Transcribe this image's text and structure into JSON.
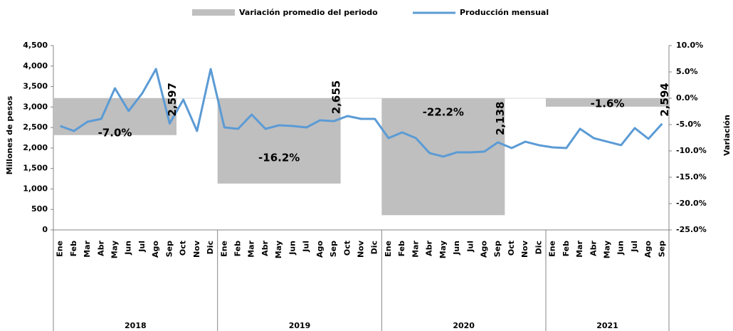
{
  "chart_data": {
    "type": "combo",
    "yaxis_title": "Millones de pesos",
    "y2axis_title": "Variación",
    "groups": [
      {
        "name": "2018",
        "months": [
          "Ene",
          "Feb",
          "Mar",
          "Abr",
          "May",
          "Jun",
          "Jul",
          "Ago",
          "Sep",
          "Oct",
          "Nov",
          "Dic"
        ]
      },
      {
        "name": "2019",
        "months": [
          "Ene",
          "Feb",
          "Mar",
          "Abr",
          "May",
          "Jun",
          "Jul",
          "Ago",
          "Sep",
          "Oct",
          "Nov",
          "Dic"
        ]
      },
      {
        "name": "2020",
        "months": [
          "Ene",
          "Feb",
          "Mar",
          "Abr",
          "May",
          "Jun",
          "Jul",
          "Ago",
          "Sep",
          "Oct",
          "Nov",
          "Dic"
        ]
      },
      {
        "name": "2021",
        "months": [
          "Ene",
          "Feb",
          "Mar",
          "Abr",
          "May",
          "Jun",
          "Jul",
          "Ago",
          "Sep"
        ]
      }
    ],
    "series": [
      {
        "name": "Variación promedio del periodo",
        "type": "bar",
        "axis": "y2",
        "color": "#bfbfbf",
        "values": [
          -7.0,
          -16.2,
          -22.2,
          -1.6
        ],
        "value_labels": [
          "-7.0%",
          "-16.2%",
          "-22.2%",
          "-1.6%"
        ],
        "label_color": "#ff0000"
      },
      {
        "name": "Producción mensual",
        "type": "line",
        "axis": "y",
        "color": "#5b9bd5",
        "values": [
          2537,
          2415,
          2641,
          2710,
          3458,
          2902,
          3336,
          3927,
          2597,
          3180,
          2415,
          3927,
          2502,
          2467,
          2815,
          2467,
          2554,
          2537,
          2502,
          2676,
          2655,
          2780,
          2710,
          2710,
          2241,
          2380,
          2241,
          1876,
          1790,
          1894,
          1894,
          1911,
          2138,
          1998,
          2154,
          2068,
          2015,
          1998,
          2467,
          2241,
          2154,
          2068,
          2485,
          2224,
          2594
        ],
        "value_labels": [
          null,
          null,
          null,
          null,
          null,
          null,
          null,
          null,
          "2,597",
          null,
          null,
          null,
          null,
          null,
          null,
          null,
          null,
          null,
          null,
          null,
          "2,655",
          null,
          null,
          null,
          null,
          null,
          null,
          null,
          null,
          null,
          null,
          null,
          "2,138",
          null,
          null,
          null,
          null,
          null,
          null,
          null,
          null,
          null,
          null,
          null,
          "2,594"
        ]
      }
    ],
    "ylim": [
      0,
      4500
    ],
    "yticks": [
      0,
      500,
      {
        "value": 1000,
        "label": "1,000"
      },
      {
        "value": 1500,
        "label": "1,500"
      },
      {
        "value": 2000,
        "label": "2,000"
      },
      {
        "value": 2500,
        "label": "2,500"
      },
      {
        "value": 3000,
        "label": "3,000"
      },
      {
        "value": 3500,
        "label": "3,500"
      },
      {
        "value": 4000,
        "label": "4,000"
      },
      {
        "value": 4500,
        "label": "4,500"
      }
    ],
    "y2lim": [
      -25,
      10
    ],
    "y2ticks": [
      {
        "value": -25,
        "label": "-25.0%"
      },
      {
        "value": -20,
        "label": "-20.0%"
      },
      {
        "value": -15,
        "label": "-15.0%"
      },
      {
        "value": -10,
        "label": "-10.0%"
      },
      {
        "value": -5,
        "label": "-5.0%"
      },
      {
        "value": 0,
        "label": "0.0%"
      },
      {
        "value": 5,
        "label": "5.0%"
      },
      {
        "value": 10,
        "label": "10.0%"
      }
    ],
    "y2_negative_color": "#ff0000",
    "legend": "top"
  }
}
